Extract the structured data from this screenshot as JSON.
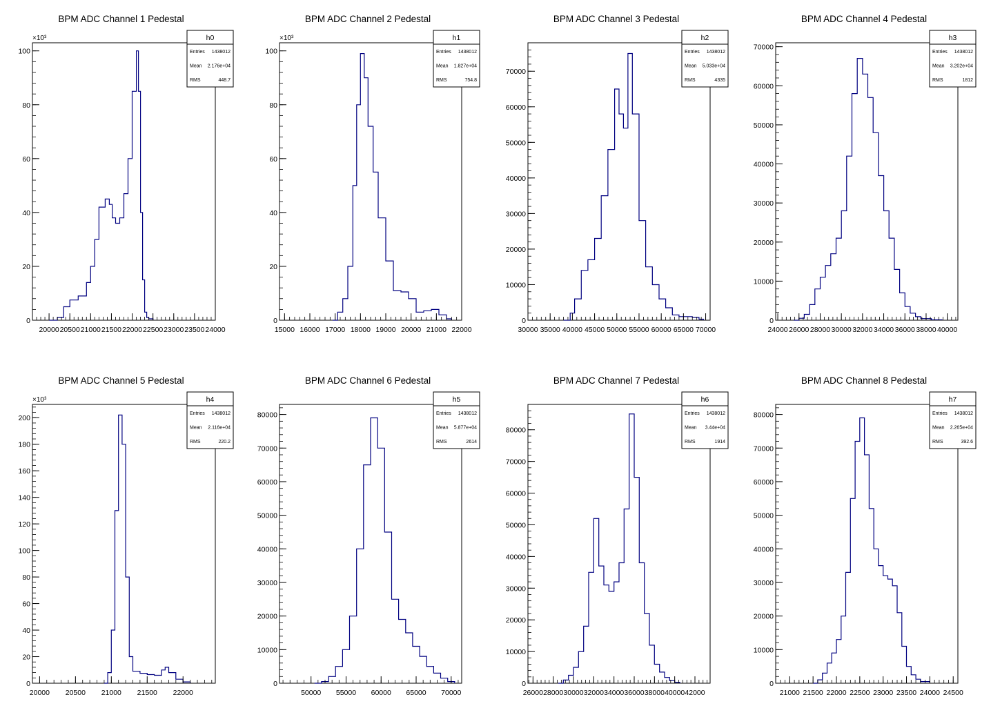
{
  "chart_data": [
    {
      "type": "histogram",
      "title": "BPM ADC Channel 1 Pedestal",
      "stats": {
        "name": "h0",
        "entries_label": "Entries",
        "entries": "1438012",
        "mean_label": "Mean",
        "mean": "2.176e+04",
        "rms_label": "RMS",
        "rms": "448.7"
      },
      "xlim": [
        19600,
        24000
      ],
      "ylim": [
        0,
        103
      ],
      "y_multiplier": "×10³",
      "xticks": [
        20000,
        20500,
        21000,
        21500,
        22000,
        22500,
        23000,
        23500,
        24000
      ],
      "yticks": [
        0,
        20,
        40,
        60,
        80,
        100
      ],
      "series": [
        {
          "x": [
            20000,
            20200,
            20350,
            20500,
            20700,
            20900,
            21000,
            21100,
            21200,
            21350,
            21450,
            21520,
            21600,
            21700,
            21800,
            21900,
            22000,
            22100,
            22150,
            22200,
            22250,
            22300,
            22350,
            22400,
            22500
          ],
          "values": [
            0,
            1,
            5,
            7.5,
            9,
            14,
            20,
            30,
            42,
            45,
            43,
            38,
            36,
            38,
            47,
            60,
            85,
            100,
            85,
            40,
            15,
            3,
            1,
            0.5,
            0
          ]
        }
      ]
    },
    {
      "type": "histogram",
      "title": "BPM ADC Channel 2 Pedestal",
      "stats": {
        "name": "h1",
        "entries_label": "Entries",
        "entries": "1438012",
        "mean_label": "Mean",
        "mean": "1.827e+04",
        "rms_label": "RMS",
        "rms": "754.8"
      },
      "xlim": [
        14800,
        22000
      ],
      "ylim": [
        0,
        103
      ],
      "y_multiplier": "×10³",
      "xticks": [
        15000,
        16000,
        17000,
        18000,
        19000,
        20000,
        21000,
        22000
      ],
      "yticks": [
        0,
        20,
        40,
        60,
        80,
        100
      ],
      "series": [
        {
          "x": [
            16900,
            17100,
            17300,
            17500,
            17700,
            17850,
            18000,
            18150,
            18300,
            18500,
            18700,
            19000,
            19300,
            19600,
            19900,
            20200,
            20500,
            20800,
            21100,
            21400,
            21600
          ],
          "values": [
            0,
            3,
            8,
            20,
            50,
            80,
            99,
            90,
            72,
            55,
            38,
            22,
            11,
            10.5,
            8,
            3,
            3.5,
            4,
            2,
            0.5,
            0
          ]
        }
      ]
    },
    {
      "type": "histogram",
      "title": "BPM ADC Channel 3 Pedestal",
      "stats": {
        "name": "h2",
        "entries_label": "Entries",
        "entries": "1438012",
        "mean_label": "Mean",
        "mean": "5.033e+04",
        "rms_label": "RMS",
        "rms": "4335"
      },
      "xlim": [
        30000,
        71000
      ],
      "ylim": [
        0,
        78000
      ],
      "y_multiplier": "",
      "xticks": [
        30000,
        35000,
        40000,
        45000,
        50000,
        55000,
        60000,
        65000,
        70000
      ],
      "yticks": [
        0,
        10000,
        20000,
        30000,
        40000,
        50000,
        60000,
        70000
      ],
      "series": [
        {
          "x": [
            38000,
            39500,
            40500,
            42000,
            43500,
            45000,
            46500,
            48000,
            49500,
            50500,
            51500,
            52500,
            53500,
            55000,
            56500,
            58000,
            59500,
            61000,
            62500,
            64000,
            65500,
            67000,
            68500,
            69500
          ],
          "values": [
            0,
            2000,
            6000,
            14000,
            17000,
            23000,
            35000,
            48000,
            65000,
            58000,
            54000,
            75000,
            58000,
            28000,
            15000,
            10000,
            6000,
            3500,
            1500,
            1000,
            1000,
            800,
            300,
            0
          ]
        }
      ]
    },
    {
      "type": "histogram",
      "title": "BPM ADC Channel 4 Pedestal",
      "stats": {
        "name": "h3",
        "entries_label": "Entries",
        "entries": "1438012",
        "mean_label": "Mean",
        "mean": "3.202e+04",
        "rms_label": "RMS",
        "rms": "1812"
      },
      "xlim": [
        23800,
        41000
      ],
      "ylim": [
        0,
        71000
      ],
      "y_multiplier": "",
      "xticks": [
        24000,
        26000,
        28000,
        30000,
        32000,
        34000,
        36000,
        38000,
        40000
      ],
      "yticks": [
        0,
        10000,
        20000,
        30000,
        40000,
        50000,
        60000,
        70000
      ],
      "series": [
        {
          "x": [
            25500,
            26000,
            26500,
            27000,
            27500,
            28000,
            28500,
            29000,
            29500,
            30000,
            30500,
            31000,
            31500,
            32000,
            32500,
            33000,
            33500,
            34000,
            34500,
            35000,
            35500,
            36000,
            36500,
            37000,
            37500,
            38500,
            39500
          ],
          "values": [
            0,
            500,
            1500,
            4000,
            8000,
            11000,
            14000,
            17000,
            21000,
            28000,
            42000,
            58000,
            67000,
            63000,
            57000,
            48000,
            37000,
            28000,
            21000,
            13000,
            7000,
            3500,
            1800,
            900,
            400,
            100,
            0
          ]
        }
      ]
    },
    {
      "type": "histogram",
      "title": "BPM ADC Channel 5 Pedestal",
      "stats": {
        "name": "h4",
        "entries_label": "Entries",
        "entries": "1438012",
        "mean_label": "Mean",
        "mean": "2.116e+04",
        "rms_label": "RMS",
        "rms": "220.2"
      },
      "xlim": [
        19900,
        22450
      ],
      "ylim": [
        0,
        210
      ],
      "y_multiplier": "×10³",
      "xticks": [
        20000,
        20500,
        21000,
        21500,
        22000
      ],
      "yticks": [
        0,
        20,
        40,
        60,
        80,
        100,
        120,
        140,
        160,
        180,
        200
      ],
      "series": [
        {
          "x": [
            20900,
            20950,
            21000,
            21050,
            21100,
            21150,
            21200,
            21250,
            21300,
            21400,
            21500,
            21600,
            21700,
            21750,
            21800,
            21900,
            22000,
            22100
          ],
          "values": [
            0,
            8,
            40,
            130,
            202,
            180,
            80,
            20,
            9,
            7.5,
            6.5,
            6,
            10,
            12,
            8,
            3,
            1,
            0
          ]
        }
      ]
    },
    {
      "type": "histogram",
      "title": "BPM ADC Channel 6 Pedestal",
      "stats": {
        "name": "h5",
        "entries_label": "Entries",
        "entries": "1438012",
        "mean_label": "Mean",
        "mean": "5.877e+04",
        "rms_label": "RMS",
        "rms": "2614"
      },
      "xlim": [
        45500,
        71500
      ],
      "ylim": [
        0,
        83000
      ],
      "y_multiplier": "",
      "xticks": [
        50000,
        55000,
        60000,
        65000,
        70000
      ],
      "yticks": [
        0,
        10000,
        20000,
        30000,
        40000,
        50000,
        60000,
        70000,
        80000
      ],
      "series": [
        {
          "x": [
            50500,
            51500,
            52500,
            53500,
            54500,
            55500,
            56500,
            57500,
            58500,
            59500,
            60500,
            61500,
            62500,
            63500,
            64500,
            65500,
            66500,
            67500,
            68500,
            69500,
            70500
          ],
          "values": [
            0,
            500,
            2000,
            5000,
            10000,
            20000,
            40000,
            65000,
            79000,
            70000,
            45000,
            25000,
            19000,
            15000,
            11000,
            8000,
            5000,
            3000,
            1500,
            500,
            0
          ]
        }
      ]
    },
    {
      "type": "histogram",
      "title": "BPM ADC Channel 7 Pedestal",
      "stats": {
        "name": "h6",
        "entries_label": "Entries",
        "entries": "1438012",
        "mean_label": "Mean",
        "mean": "3.44e+04",
        "rms_label": "RMS",
        "rms": "1914"
      },
      "xlim": [
        25500,
        43500
      ],
      "ylim": [
        0,
        88000
      ],
      "y_multiplier": "",
      "xticks": [
        26000,
        28000,
        30000,
        32000,
        34000,
        36000,
        38000,
        40000,
        42000
      ],
      "yticks": [
        0,
        10000,
        20000,
        30000,
        40000,
        50000,
        60000,
        70000,
        80000
      ],
      "series": [
        {
          "x": [
            28500,
            29000,
            29500,
            30000,
            30500,
            31000,
            31500,
            32000,
            32500,
            33000,
            33500,
            34000,
            34500,
            35000,
            35500,
            36000,
            36500,
            37000,
            37500,
            38000,
            38500,
            39000,
            39500,
            40000,
            40500
          ],
          "values": [
            0,
            1000,
            2500,
            5000,
            10000,
            18000,
            35000,
            52000,
            37000,
            31000,
            29000,
            32000,
            38000,
            55000,
            85000,
            65000,
            38000,
            22000,
            12000,
            6000,
            3500,
            1800,
            800,
            300,
            0
          ]
        }
      ]
    },
    {
      "type": "histogram",
      "title": "BPM ADC Channel 8 Pedestal",
      "stats": {
        "name": "h7",
        "entries_label": "Entries",
        "entries": "1438012",
        "mean_label": "Mean",
        "mean": "2.265e+04",
        "rms_label": "RMS",
        "rms": "392.6"
      },
      "xlim": [
        20700,
        24600
      ],
      "ylim": [
        0,
        83000
      ],
      "y_multiplier": "",
      "xticks": [
        21000,
        21500,
        22000,
        22500,
        23000,
        23500,
        24000,
        24500
      ],
      "yticks": [
        0,
        10000,
        20000,
        30000,
        40000,
        50000,
        60000,
        70000,
        80000
      ],
      "series": [
        {
          "x": [
            21500,
            21600,
            21700,
            21800,
            21900,
            22000,
            22100,
            22200,
            22300,
            22400,
            22500,
            22600,
            22700,
            22800,
            22900,
            23000,
            23100,
            23200,
            23300,
            23400,
            23500,
            23600,
            23700,
            23800,
            24000
          ],
          "values": [
            0,
            1000,
            3000,
            6000,
            9000,
            13000,
            20000,
            33000,
            55000,
            72000,
            79000,
            68000,
            52000,
            40000,
            35000,
            32000,
            31000,
            29000,
            21000,
            11000,
            5000,
            2500,
            1200,
            500,
            0
          ]
        }
      ]
    }
  ]
}
